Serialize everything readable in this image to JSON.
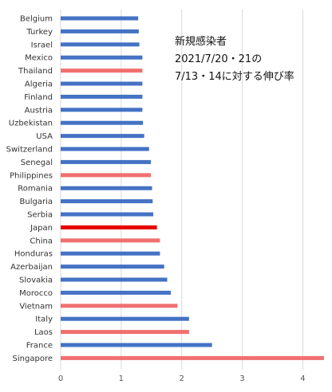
{
  "chart_data": {
    "type": "bar",
    "orientation": "horizontal",
    "title_lines": [
      "新規感染者",
      "2021/7/20・21の",
      "7/13・14に対する伸び率"
    ],
    "categories": [
      "Belgium",
      "Turkey",
      "Israel",
      "Mexico",
      "Thailand",
      "Algeria",
      "Finland",
      "Austria",
      "Uzbekistan",
      "USA",
      "Switzerland",
      "Senegal",
      "Philippines",
      "Romania",
      "Bulgaria",
      "Serbia",
      "Japan",
      "China",
      "Honduras",
      "Azerbaijan",
      "Slovakia",
      "Morocco",
      "Vietnam",
      "Italy",
      "Laos",
      "France",
      "Singapore"
    ],
    "values": [
      1.28,
      1.29,
      1.3,
      1.35,
      1.35,
      1.35,
      1.35,
      1.35,
      1.36,
      1.38,
      1.46,
      1.49,
      1.49,
      1.51,
      1.52,
      1.53,
      1.59,
      1.64,
      1.64,
      1.71,
      1.76,
      1.82,
      1.93,
      2.12,
      2.12,
      2.5,
      4.35
    ],
    "bar_colors": [
      "#4472c4",
      "#4472c4",
      "#4472c4",
      "#4472c4",
      "#f07070",
      "#4472c4",
      "#4472c4",
      "#4472c4",
      "#4472c4",
      "#4472c4",
      "#4472c4",
      "#4472c4",
      "#f07070",
      "#4472c4",
      "#4472c4",
      "#4472c4",
      "#e60000",
      "#f07070",
      "#4472c4",
      "#4472c4",
      "#4472c4",
      "#4472c4",
      "#f07070",
      "#4472c4",
      "#f07070",
      "#4472c4",
      "#f07070"
    ],
    "xlim": [
      0,
      4.35
    ],
    "xticks": [
      "0",
      "1",
      "2",
      "3",
      "4"
    ],
    "grid": true
  }
}
